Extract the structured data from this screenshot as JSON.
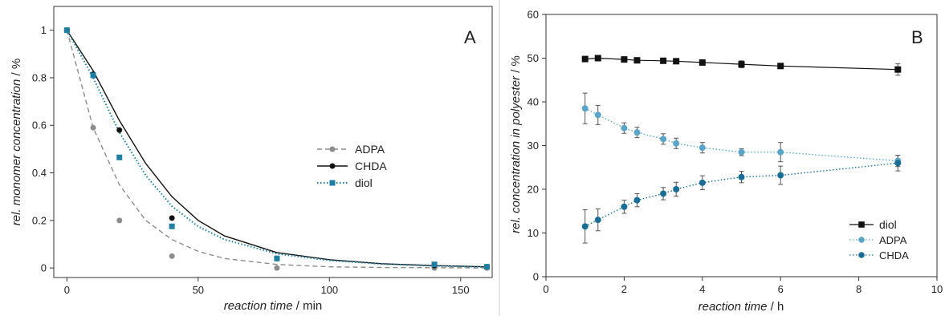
{
  "chart_data": [
    {
      "type": "scatter",
      "panel_label": "A",
      "xlabel": "reaction time",
      "xunit": "min",
      "ylabel": "rel. monomer concentration",
      "yunit": "%",
      "xlim": [
        -5,
        162
      ],
      "ylim": [
        -0.04,
        1.1
      ],
      "xticks": [
        0,
        50,
        100,
        150
      ],
      "yticks": [
        0,
        0.2,
        0.4,
        0.6,
        0.8,
        1
      ],
      "ytick_labels": [
        "0",
        "0.2",
        "0.4",
        "0.6",
        "0.8",
        "1"
      ],
      "grid": false,
      "legend_position": "right-center",
      "series": [
        {
          "name": "ADPA",
          "color": "#8c8c8c",
          "marker": "circle",
          "line": "dashed",
          "x": [
            0,
            10,
            20,
            40,
            80,
            140,
            160
          ],
          "y": [
            1.0,
            0.59,
            0.2,
            0.05,
            0.0,
            0.0,
            0.0
          ],
          "fit": {
            "x": [
              0,
              10,
              20,
              30,
              40,
              50,
              60,
              80,
              100,
              120,
              140,
              160
            ],
            "y": [
              1.0,
              0.59,
              0.35,
              0.2,
              0.12,
              0.07,
              0.04,
              0.015,
              0.005,
              0.002,
              0.001,
              0.0
            ]
          }
        },
        {
          "name": "CHDA",
          "color": "#111111",
          "marker": "circle",
          "line": "solid",
          "x": [
            0,
            10,
            20,
            40,
            80,
            140,
            160
          ],
          "y": [
            1.0,
            0.815,
            0.58,
            0.21,
            0.04,
            0.01,
            0.005
          ],
          "fit": {
            "x": [
              0,
              10,
              20,
              30,
              40,
              50,
              60,
              80,
              100,
              120,
              140,
              160
            ],
            "y": [
              1.0,
              0.83,
              0.62,
              0.44,
              0.3,
              0.2,
              0.135,
              0.065,
              0.035,
              0.018,
              0.01,
              0.005
            ]
          }
        },
        {
          "name": "diol",
          "color": "#1f7ea1",
          "marker": "square",
          "line": "dotted",
          "x": [
            0,
            10,
            20,
            40,
            80,
            140,
            160
          ],
          "y": [
            1.0,
            0.81,
            0.465,
            0.175,
            0.04,
            0.015,
            0.005
          ],
          "fit": {
            "x": [
              0,
              10,
              20,
              30,
              40,
              50,
              60,
              80,
              100,
              120,
              140,
              160
            ],
            "y": [
              1.0,
              0.8,
              0.57,
              0.39,
              0.26,
              0.175,
              0.12,
              0.06,
              0.032,
              0.017,
              0.009,
              0.004
            ]
          }
        }
      ]
    },
    {
      "type": "line",
      "panel_label": "B",
      "xlabel": "reaction time",
      "xunit": "h",
      "ylabel": "rel. concentration in polyester",
      "yunit": "%",
      "xlim": [
        0,
        10
      ],
      "ylim": [
        0,
        60
      ],
      "xticks": [
        0,
        2,
        4,
        6,
        8,
        10
      ],
      "yticks": [
        0,
        10,
        20,
        30,
        40,
        50,
        60
      ],
      "grid": false,
      "legend_position": "bottom-right",
      "series": [
        {
          "name": "diol",
          "color": "#111111",
          "marker": "square",
          "line": "solid",
          "x": [
            1,
            1.33,
            2,
            2.33,
            3,
            3.33,
            4,
            5,
            6,
            9
          ],
          "y": [
            49.8,
            50.0,
            49.7,
            49.5,
            49.4,
            49.3,
            49.0,
            48.6,
            48.2,
            47.4
          ],
          "err": [
            0.3,
            0.3,
            0.3,
            0.4,
            0.4,
            0.4,
            0.5,
            0.8,
            0.5,
            1.3
          ]
        },
        {
          "name": "ADPA",
          "color": "#5aa5c7",
          "marker": "circle",
          "line": "dotted",
          "x": [
            1,
            1.33,
            2,
            2.33,
            3,
            3.33,
            4,
            5,
            6,
            9
          ],
          "y": [
            38.5,
            37.0,
            34.0,
            33.0,
            31.5,
            30.5,
            29.5,
            28.5,
            28.5,
            26.5
          ],
          "err": [
            3.5,
            2.2,
            1.2,
            1.2,
            1.2,
            1.2,
            1.2,
            0.8,
            2.2,
            1.3
          ]
        },
        {
          "name": "CHDA",
          "color": "#1a6e94",
          "marker": "circle",
          "line": "dotted",
          "x": [
            1,
            1.33,
            2,
            2.33,
            3,
            3.33,
            4,
            5,
            6,
            9
          ],
          "y": [
            11.5,
            13.0,
            16.0,
            17.5,
            19.0,
            20.0,
            21.5,
            22.8,
            23.2,
            26.0
          ],
          "err": [
            3.8,
            2.5,
            1.5,
            1.5,
            1.4,
            1.6,
            1.6,
            1.3,
            2.1,
            1.8
          ]
        }
      ]
    }
  ]
}
